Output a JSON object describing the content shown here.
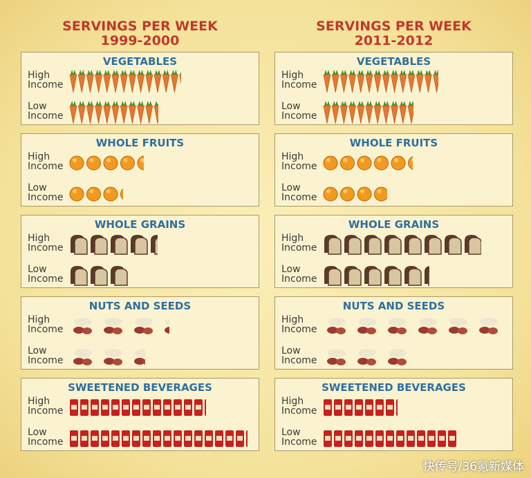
{
  "chart_data": [
    {
      "type": "pictograph",
      "title": "SERVINGS PER WEEK",
      "subtitle": "1999-2000",
      "categories": [
        "VEGETABLES",
        "WHOLE FRUITS",
        "WHOLE GRAINS",
        "NUTS AND SEEDS",
        "SWEETENED BEVERAGES"
      ],
      "series": [
        {
          "name": "High Income",
          "values": [
            13.3,
            4.4,
            4.4,
            3.3,
            13.2
          ]
        },
        {
          "name": "Low Income",
          "values": [
            10.6,
            3.2,
            3,
            2.5,
            17.2
          ]
        }
      ]
    },
    {
      "type": "pictograph",
      "title": "SERVINGS PER WEEK",
      "subtitle": "2011-2012",
      "categories": [
        "VEGETABLES",
        "WHOLE FRUITS",
        "WHOLE GRAINS",
        "NUTS AND SEEDS",
        "SWEETENED BEVERAGES"
      ],
      "series": [
        {
          "name": "High Income",
          "values": [
            13.7,
            5.3,
            7.9,
            5.9,
            7.2
          ]
        },
        {
          "name": "Low Income",
          "values": [
            10.7,
            3.8,
            5.3,
            2.8,
            13
          ]
        }
      ]
    }
  ],
  "watermark": "快传号/36氪新媒体"
}
